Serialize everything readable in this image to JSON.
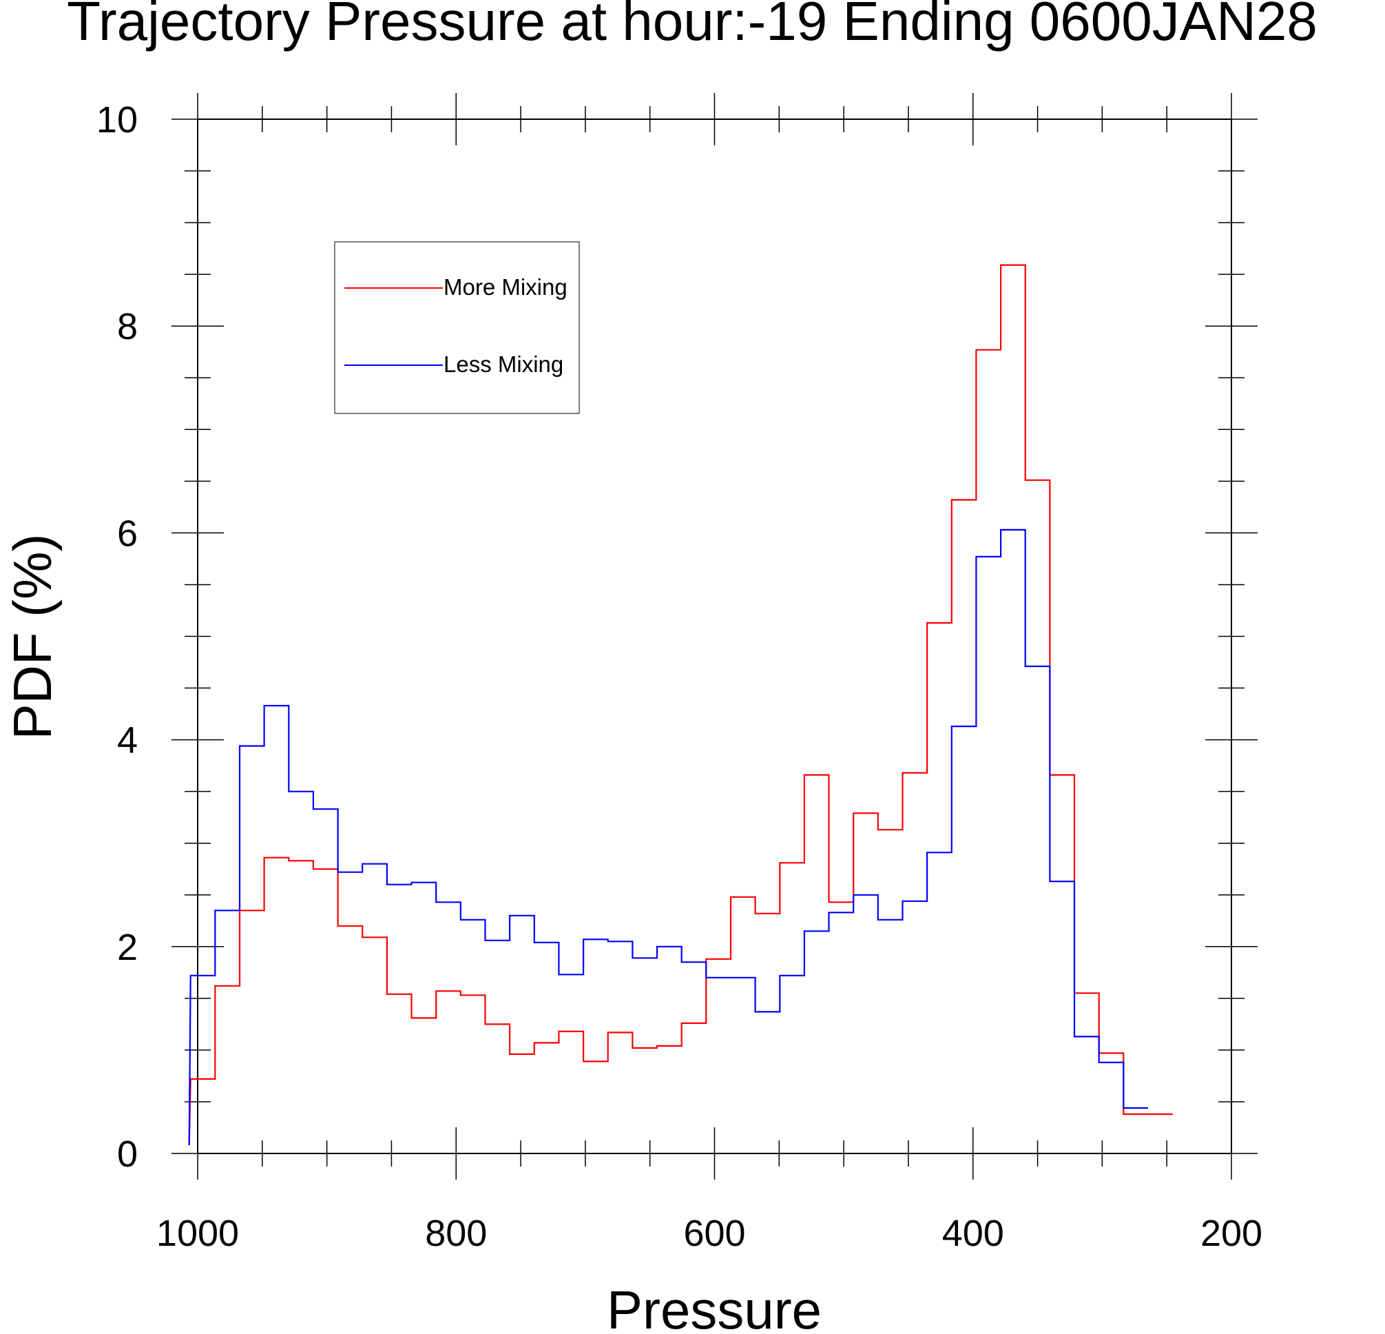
{
  "chart_data": {
    "type": "line",
    "step": true,
    "title": "Trajectory Pressure at hour:-19 Ending 0600JAN28",
    "xlabel": "Pressure",
    "ylabel": "PDF (%)",
    "xlim": [
      1000,
      200
    ],
    "ylim": [
      0,
      10
    ],
    "x_ticks": [
      "1000",
      "800",
      "600",
      "400",
      "200"
    ],
    "y_ticks": [
      "0",
      "2",
      "4",
      "6",
      "8",
      "10"
    ],
    "grid": false,
    "legend_position": "top-left",
    "series": [
      {
        "name": "More Mixing",
        "color": "#ff0000",
        "x": [
          996,
          977,
          958,
          939,
          920,
          901,
          882,
          863,
          844,
          825,
          806,
          787,
          768,
          749,
          730,
          711,
          692,
          673,
          654,
          635,
          616,
          597,
          578,
          559,
          540,
          521,
          502,
          483,
          464,
          445,
          426,
          407,
          388,
          369,
          350,
          331,
          312,
          293,
          274,
          255
        ],
        "y": [
          0.72,
          1.62,
          2.35,
          2.86,
          2.83,
          2.75,
          2.2,
          2.09,
          1.54,
          1.31,
          1.57,
          1.53,
          1.25,
          0.96,
          1.07,
          1.18,
          0.89,
          1.17,
          1.02,
          1.04,
          1.26,
          1.88,
          2.48,
          2.32,
          2.81,
          3.66,
          2.43,
          3.29,
          3.13,
          3.68,
          5.13,
          6.32,
          7.77,
          8.59,
          6.51,
          3.66,
          1.55,
          0.97,
          0.38,
          0.38
        ]
      },
      {
        "name": "Less Mixing",
        "color": "#0000ff",
        "x": [
          996,
          977,
          958,
          939,
          920,
          901,
          882,
          863,
          844,
          825,
          806,
          787,
          768,
          749,
          730,
          711,
          692,
          673,
          654,
          635,
          616,
          597,
          578,
          559,
          540,
          521,
          502,
          483,
          464,
          445,
          426,
          407,
          388,
          369,
          350,
          331,
          312,
          293,
          274
        ],
        "y": [
          1.72,
          2.35,
          3.94,
          4.33,
          3.5,
          3.33,
          2.72,
          2.8,
          2.6,
          2.62,
          2.43,
          2.26,
          2.06,
          2.3,
          2.04,
          1.73,
          2.07,
          2.05,
          1.89,
          2.0,
          1.85,
          1.7,
          1.7,
          1.37,
          1.72,
          2.15,
          2.33,
          2.5,
          2.26,
          2.44,
          2.91,
          4.13,
          5.77,
          6.03,
          4.71,
          2.63,
          1.13,
          0.88,
          0.44
        ]
      }
    ]
  }
}
